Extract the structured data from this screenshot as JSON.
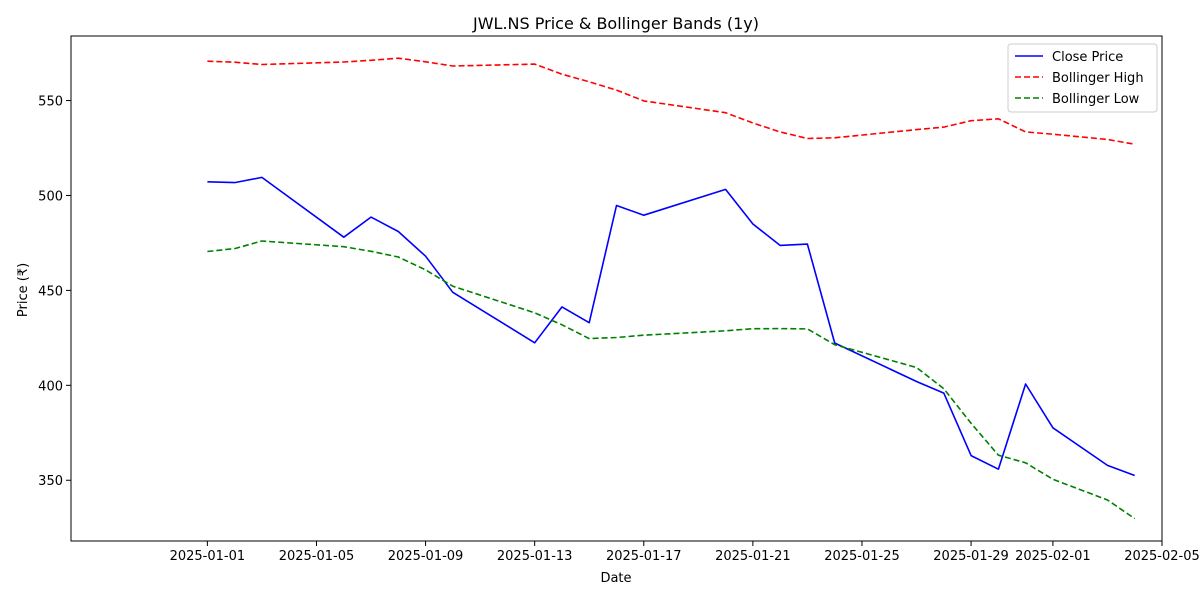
{
  "chart_data": {
    "type": "line",
    "title": "JWL.NS Price & Bollinger Bands (1y)",
    "xlabel": "Date",
    "ylabel": "Price (₹)",
    "xlim": [
      "2024-12-27",
      "2025-02-05"
    ],
    "ylim": [
      318,
      584
    ],
    "x_ticks": [
      "2025-01-01",
      "2025-01-05",
      "2025-01-09",
      "2025-01-13",
      "2025-01-17",
      "2025-01-21",
      "2025-01-25",
      "2025-01-29",
      "2025-02-01",
      "2025-02-05"
    ],
    "y_ticks": [
      350,
      400,
      450,
      500,
      550
    ],
    "grid": false,
    "legend_position": "top-right",
    "x": [
      "2025-01-01",
      "2025-01-02",
      "2025-01-03",
      "2025-01-06",
      "2025-01-07",
      "2025-01-08",
      "2025-01-09",
      "2025-01-10",
      "2025-01-13",
      "2025-01-14",
      "2025-01-15",
      "2025-01-16",
      "2025-01-17",
      "2025-01-20",
      "2025-01-21",
      "2025-01-22",
      "2025-01-23",
      "2025-01-24",
      "2025-01-27",
      "2025-01-28",
      "2025-01-29",
      "2025-01-30",
      "2025-01-31",
      "2025-02-01",
      "2025-02-03",
      "2025-02-04"
    ],
    "series": [
      {
        "name": "Close Price",
        "color": "#0000ff",
        "style": "solid",
        "values": [
          507.2,
          506.8,
          509.5,
          478.0,
          488.6,
          481.0,
          468.0,
          449.0,
          422.4,
          441.3,
          433.0,
          494.7,
          489.6,
          503.2,
          485.0,
          473.7,
          474.4,
          422.3,
          402.0,
          395.9,
          363.0,
          355.8,
          400.7,
          377.6,
          357.8,
          352.5
        ]
      },
      {
        "name": "Bollinger High",
        "color": "#ff0000",
        "style": "dashed",
        "values": [
          570.7,
          570.2,
          569.0,
          570.3,
          571.2,
          572.3,
          570.4,
          568.2,
          569.2,
          563.9,
          559.9,
          555.5,
          549.8,
          543.6,
          538.2,
          533.5,
          530.0,
          530.4,
          534.7,
          536.0,
          539.4,
          540.4,
          533.5,
          532.3,
          529.5,
          527.0
        ]
      },
      {
        "name": "Bollinger Low",
        "color": "#008000",
        "style": "dashed",
        "values": [
          470.5,
          472.0,
          476.0,
          473.0,
          470.6,
          467.6,
          460.8,
          452.2,
          438.2,
          431.9,
          424.6,
          425.2,
          426.4,
          428.7,
          429.8,
          429.9,
          429.7,
          421.4,
          409.4,
          398.2,
          380.0,
          363.2,
          359.2,
          350.5,
          339.6,
          329.8
        ]
      }
    ]
  }
}
